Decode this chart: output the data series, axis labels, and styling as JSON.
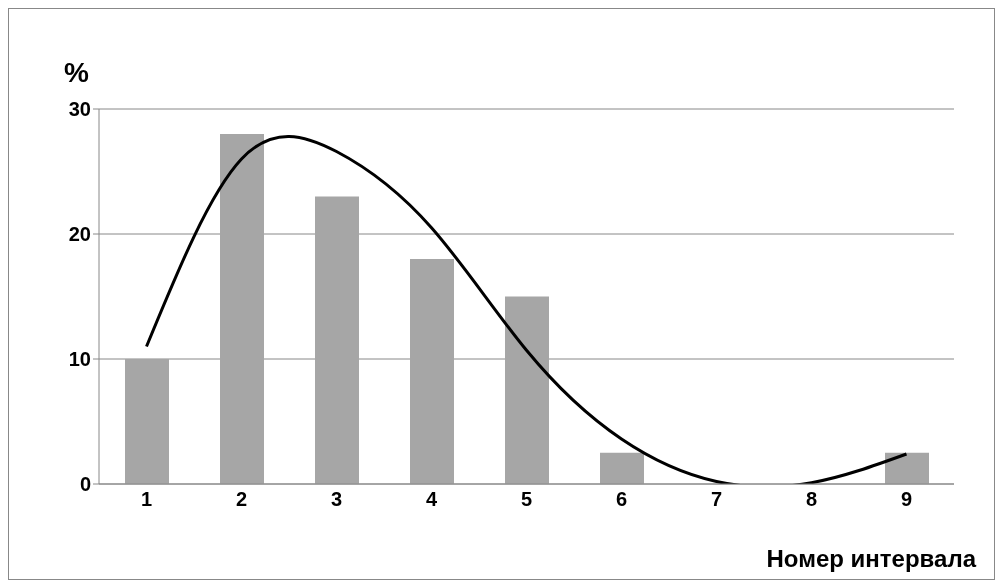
{
  "chart_data": {
    "type": "bar",
    "xlabel": "Номер интервала",
    "ylabel": "%",
    "categories": [
      "1",
      "2",
      "3",
      "4",
      "5",
      "6",
      "7",
      "8",
      "9"
    ],
    "series": [
      {
        "color": "#a6a6a6",
        "values": [
          10,
          28,
          23,
          18,
          15,
          2.5,
          0,
          0,
          2.5
        ]
      },
      {
        "type": "line",
        "color": "#000000",
        "values": [
          11,
          26,
          26.6,
          20.5,
          10.7,
          3.6,
          0.2,
          0.1,
          2.4
        ]
      }
    ],
    "ylim": [
      0,
      30
    ],
    "yticks": [
      0,
      10,
      20,
      30
    ],
    "grid": "y",
    "legend": false,
    "marker": "none",
    "line_style": "solid"
  }
}
